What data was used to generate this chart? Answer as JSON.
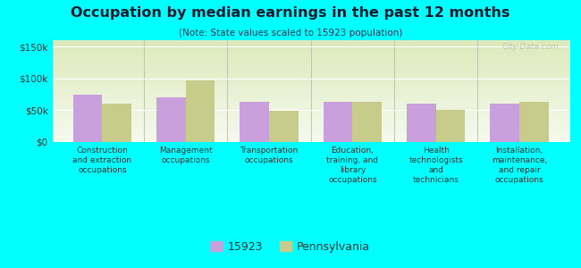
{
  "title": "Occupation by median earnings in the past 12 months",
  "subtitle": "(Note: State values scaled to 15923 population)",
  "categories": [
    "Construction\nand extraction\noccupations",
    "Management\noccupations",
    "Transportation\noccupations",
    "Education,\ntraining, and\nlibrary\noccupations",
    "Health\ntechnologists\nand\ntechnicians",
    "Installation,\nmaintenance,\nand repair\noccupations"
  ],
  "values_15923": [
    75000,
    70000,
    63000,
    63000,
    61000,
    60000
  ],
  "values_pennsylvania": [
    60000,
    97000,
    49000,
    63000,
    50000,
    63000
  ],
  "color_15923": "#c9a0dc",
  "color_pennsylvania": "#c8cc8a",
  "ylim": [
    0,
    160000
  ],
  "yticks": [
    0,
    50000,
    100000,
    150000
  ],
  "ytick_labels": [
    "$0",
    "$50k",
    "$100k",
    "$150k"
  ],
  "background_color": "#00ffff",
  "plot_bg_top": "#ddeabb",
  "plot_bg_bottom": "#f5faee",
  "legend_labels": [
    "15923",
    "Pennsylvania"
  ],
  "bar_width": 0.35,
  "watermark": "City-Data.com",
  "title_color": "#1a1a2e",
  "subtitle_color": "#333355"
}
